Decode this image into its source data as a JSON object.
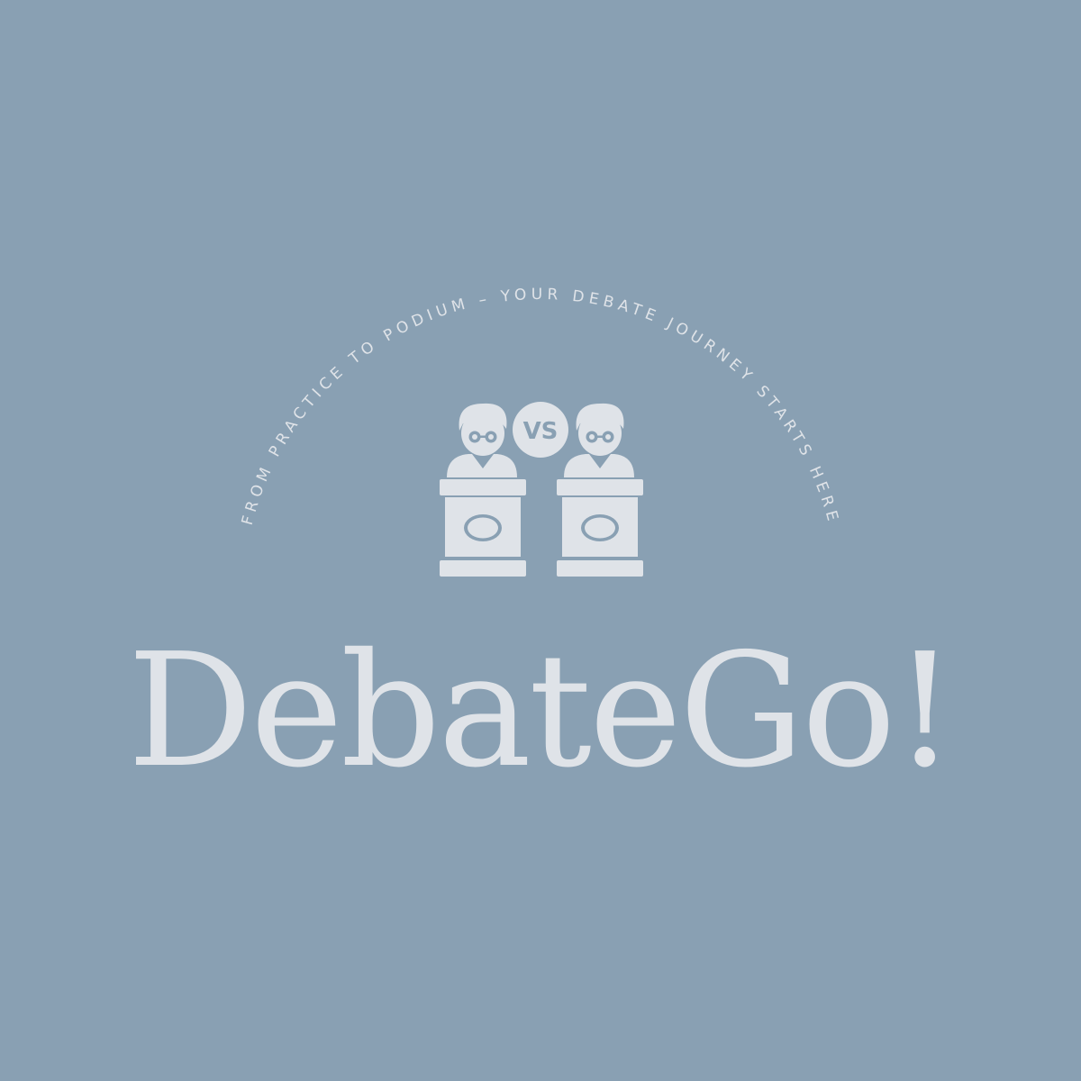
{
  "brand": {
    "name": "DebateGo!",
    "tagline": "FROM PRACTICE TO PODIUM – YOUR DEBATE JOURNEY STARTS HERE",
    "emblem_badge": "VS"
  },
  "colors": {
    "background": "#89a0b3",
    "foreground": "#dfe3e8"
  },
  "icons": {
    "emblem": "two-debaters-at-podiums-icon"
  }
}
